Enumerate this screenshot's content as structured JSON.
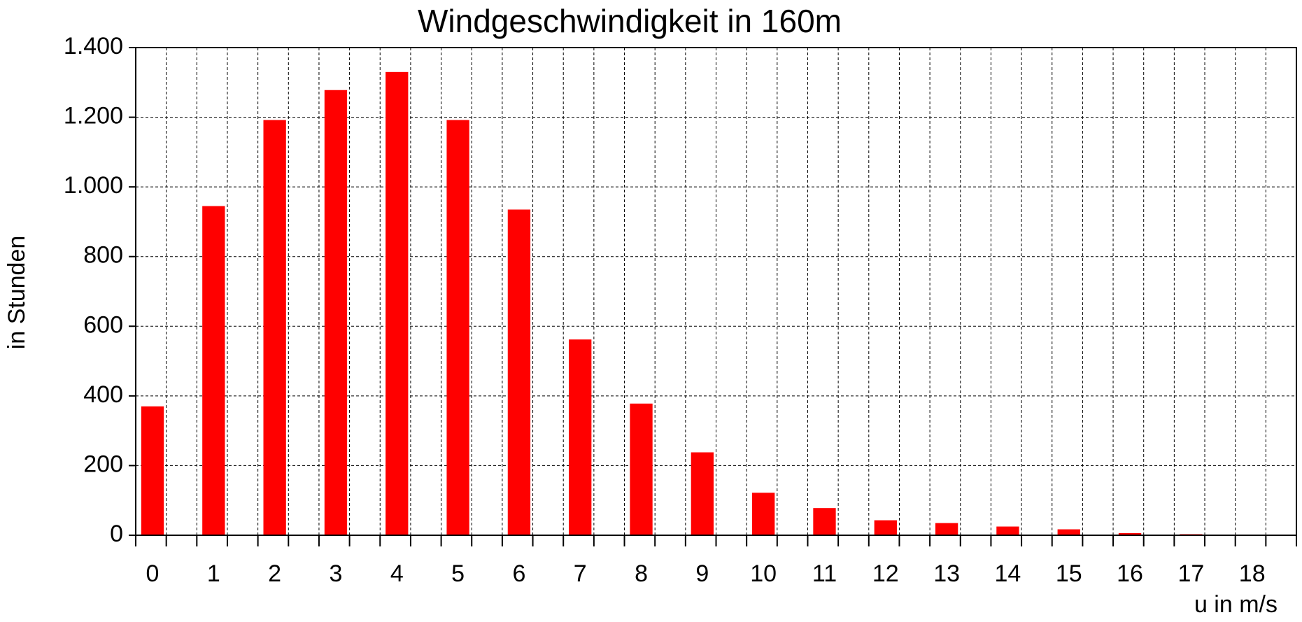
{
  "chart_data": {
    "type": "bar",
    "title": "Windgeschwindigkeit in 160m",
    "xlabel": "u in m/s",
    "ylabel": "in Stunden",
    "categories": [
      "0",
      "1",
      "2",
      "3",
      "4",
      "5",
      "6",
      "7",
      "8",
      "9",
      "10",
      "11",
      "12",
      "13",
      "14",
      "15",
      "16",
      "17",
      "18"
    ],
    "values": [
      370,
      945,
      1192,
      1278,
      1330,
      1192,
      935,
      562,
      378,
      238,
      122,
      78,
      43,
      35,
      25,
      17,
      6,
      3,
      0
    ],
    "color": "#ff0000",
    "ylim": [
      0,
      1400
    ],
    "yticks": [
      0,
      200,
      400,
      600,
      800,
      {
        "value": 1000,
        "label": "1.000"
      },
      {
        "value": 1200,
        "label": "1.200"
      },
      {
        "value": 1400,
        "label": "1.400"
      }
    ],
    "grid": true
  }
}
